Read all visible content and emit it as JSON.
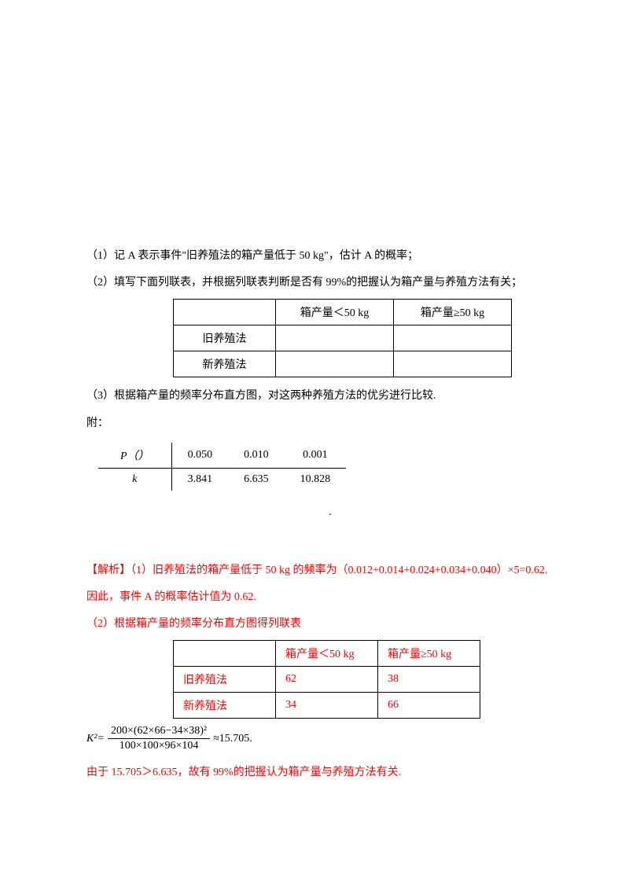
{
  "q1": "（1）记 A 表示事件\"旧养殖法的箱产量低于 50 kg\"，估计 A 的概率；",
  "q2": "（2）填写下面列联表，并根据列联表判断是否有 99%的把握认为箱产量与养殖方法有关；",
  "table1": {
    "headers": [
      "",
      "箱产量＜50 kg",
      "箱产量≥50 kg"
    ],
    "rows": [
      [
        "旧养殖法",
        "",
        ""
      ],
      [
        "新养殖法",
        "",
        ""
      ]
    ]
  },
  "q3": "（3）根据箱产量的频率分布直方图，对这两种养殖方法的优劣进行比较.",
  "attach": "附：",
  "refTable": {
    "headerLabel": "P（）",
    "headerValues": [
      "0.050",
      "0.010",
      "0.001"
    ],
    "rowLabel": "k",
    "rowValues": [
      "3.841",
      "6.635",
      "10.828"
    ]
  },
  "dot": ".",
  "solution": {
    "s1": "【解析】（1）旧养殖法的箱产量低于 50 kg 的频率为（0.012+0.014+0.024+0.034+0.040）×5=0.62.",
    "s1b": "因此，事件 A 的概率估计值为 0.62.",
    "s2": "（2）根据箱产量的频率分布直方图得列联表",
    "table2": {
      "headers": [
        "",
        "箱产量＜50 kg",
        "箱产量≥50 kg"
      ],
      "rows": [
        [
          "旧养殖法",
          "62",
          "38"
        ],
        [
          "新养殖法",
          "34",
          "66"
        ]
      ]
    },
    "formula": {
      "prefix": "K²=",
      "numerator": "200×(62×66−34×38)²",
      "denominator": "100×100×96×104",
      "suffix": "≈15.705."
    },
    "conclusion": "由于 15.705＞6.635，故有 99%的把握认为箱产量与养殖方法有关."
  }
}
